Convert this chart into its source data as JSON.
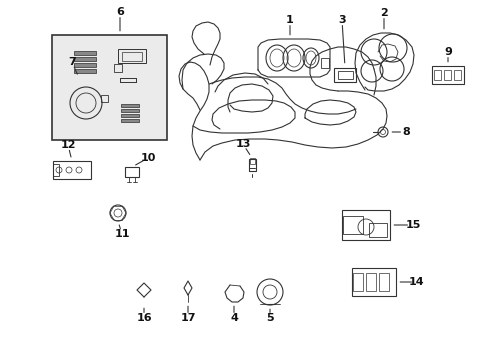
{
  "background_color": "#ffffff",
  "fig_width": 4.89,
  "fig_height": 3.6,
  "dpi": 100,
  "line_color": "#333333",
  "label_color": "#111111",
  "box_fill": "#ebebeb"
}
